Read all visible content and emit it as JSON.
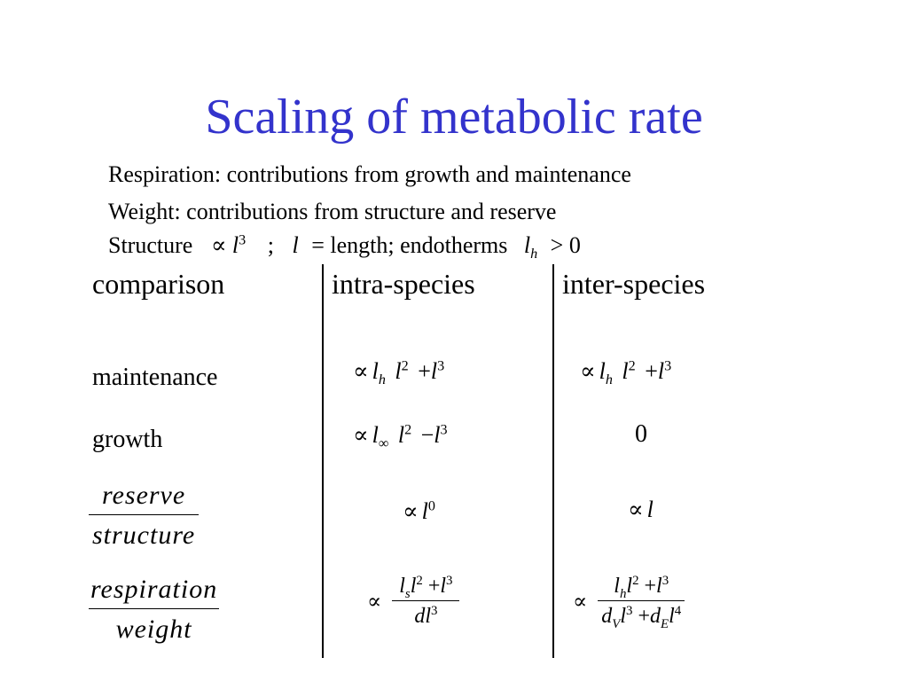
{
  "title": "Scaling of metabolic rate",
  "intro": {
    "line1": "Respiration: contributions from growth and maintenance",
    "line2": "Weight: contributions from structure and reserve",
    "line3": {
      "structure_word": "Structure",
      "prop": "∝",
      "l": "l",
      "exp3": "3",
      "semicolon": ";",
      "eq": "=",
      "length_text": "length; endotherms",
      "h": "h",
      "gt": ">",
      "zero": "0"
    }
  },
  "table": {
    "headers": {
      "comparison": "comparison",
      "intra": "intra-species",
      "inter": "inter-species"
    },
    "rows": {
      "maintenance": {
        "label": "maintenance",
        "intra": {
          "prop": "∝",
          "l": "l",
          "sub": "h",
          "l2": "l",
          "exp2": "2",
          "plus": "+",
          "l3": "l",
          "exp3": "3"
        },
        "inter": {
          "prop": "∝",
          "l": "l",
          "sub": "h",
          "l2": "l",
          "exp2": "2",
          "plus": "+",
          "l3": "l",
          "exp3": "3"
        }
      },
      "growth": {
        "label": "growth",
        "intra": {
          "prop": "∝",
          "l": "l",
          "sub": "∞",
          "l2": "l",
          "exp2": "2",
          "minus": "−",
          "l3": "l",
          "exp3": "3"
        },
        "inter": {
          "value": "0"
        }
      },
      "reserve_structure": {
        "label_num": "reserve",
        "label_den": "structure",
        "intra": {
          "prop": "∝",
          "l": "l",
          "exp": "0"
        },
        "inter": {
          "prop": "∝",
          "l": "l"
        }
      },
      "respiration_weight": {
        "label_num": "respiration",
        "label_den": "weight",
        "intra": {
          "prop": "∝",
          "num": {
            "l": "l",
            "sub": "s",
            "l2": "l",
            "exp2": "2",
            "plus": "+",
            "l3": "l",
            "exp3": "3"
          },
          "den": {
            "d": "d",
            "l": "l",
            "exp3": "3"
          }
        },
        "inter": {
          "prop": "∝",
          "num": {
            "l": "l",
            "sub": "h",
            "l2": "l",
            "exp2": "2",
            "plus": "+",
            "l3": "l",
            "exp3": "3"
          },
          "den": {
            "d1": "d",
            "sub1": "V",
            "l1": "l",
            "exp1": "3",
            "plus": "+",
            "d2": "d",
            "sub2": "E",
            "l2": "l",
            "exp2": "4"
          }
        }
      }
    }
  }
}
